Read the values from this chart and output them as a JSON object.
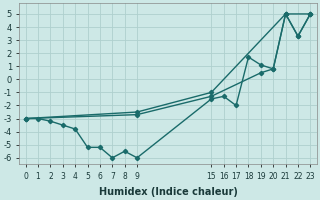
{
  "xlabel": "Humidex (Indice chaleur)",
  "bg_color": "#cde8e6",
  "grid_color": "#afd0ce",
  "line_color": "#1a6b6a",
  "ylim": [
    -6.5,
    5.8
  ],
  "yticks": [
    -6,
    -5,
    -4,
    -3,
    -2,
    -1,
    0,
    1,
    2,
    3,
    4,
    5
  ],
  "xlim": [
    -0.5,
    23.5
  ],
  "line1_x": [
    0,
    1,
    2,
    3,
    4,
    5,
    6,
    7,
    8,
    9,
    15,
    16,
    17,
    18,
    19,
    20,
    21,
    22,
    23
  ],
  "line1_y": [
    -3.0,
    -3.0,
    -3.2,
    -3.5,
    -3.8,
    -5.2,
    -5.2,
    -6.0,
    -5.5,
    -6.0,
    -1.5,
    -1.3,
    -2.0,
    1.7,
    1.1,
    0.8,
    5.0,
    3.3,
    5.0
  ],
  "line2_x": [
    0,
    9,
    15,
    19,
    20,
    21,
    22,
    23
  ],
  "line2_y": [
    -3.0,
    -2.7,
    -1.3,
    0.5,
    0.8,
    5.0,
    3.3,
    5.0
  ],
  "line3_x": [
    0,
    9,
    15,
    21,
    23
  ],
  "line3_y": [
    -3.0,
    -2.5,
    -1.0,
    5.0,
    5.0
  ],
  "xtick_positions": [
    0,
    1,
    2,
    3,
    4,
    5,
    6,
    7,
    8,
    9,
    15,
    16,
    17,
    18,
    19,
    20,
    21,
    22,
    23
  ],
  "xtick_labels": [
    "0",
    "1",
    "2",
    "3",
    "4",
    "5",
    "6",
    "7",
    "8",
    "9",
    "15",
    "16",
    "17",
    "18",
    "19",
    "20",
    "21",
    "22",
    "23"
  ],
  "xlabel_fontsize": 7,
  "tick_fontsize": 5.5,
  "ytick_fontsize": 6.0,
  "lw": 1.0,
  "ms": 2.2
}
